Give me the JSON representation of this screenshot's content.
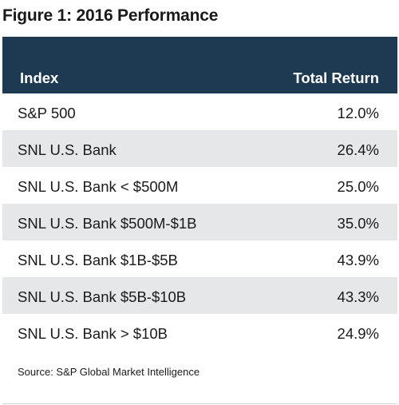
{
  "figure": {
    "title": "Figure 1: 2016 Performance"
  },
  "table": {
    "headers": {
      "index": "Index",
      "total_return": "Total Return"
    },
    "rows": [
      {
        "index": "S&P 500",
        "total_return": "12.0%"
      },
      {
        "index": "SNL U.S. Bank",
        "total_return": "26.4%"
      },
      {
        "index": "SNL U.S. Bank < $500M",
        "total_return": "25.0%"
      },
      {
        "index": "SNL U.S. Bank $500M-$1B",
        "total_return": "35.0%"
      },
      {
        "index": "SNL U.S. Bank $1B-$5B",
        "total_return": "43.9%"
      },
      {
        "index": "SNL U.S. Bank $5B-$10B",
        "total_return": "43.3%"
      },
      {
        "index": "SNL U.S. Bank > $10B",
        "total_return": "24.9%"
      }
    ]
  },
  "source": "Source: S&P Global Market Intelligence",
  "colors": {
    "header_background": "#1e3a52",
    "shaded_row": "#e6e7e9"
  }
}
